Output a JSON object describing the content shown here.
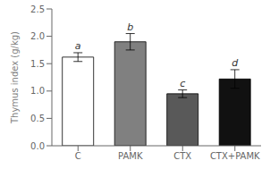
{
  "chart_data": {
    "type": "bar",
    "ylabel": "Thymus index (g/kg)",
    "categories": [
      "C",
      "PAMK",
      "CTX",
      "CTX+PAMK"
    ],
    "values": [
      1.62,
      1.9,
      0.95,
      1.22
    ],
    "errors": [
      0.08,
      0.15,
      0.07,
      0.17
    ],
    "annotations": [
      "a",
      "b",
      "c",
      "d"
    ],
    "colors": [
      "white",
      "#808080",
      "#595959",
      "#111111"
    ],
    "ylim": [
      0,
      2.5
    ],
    "yticks": [
      {
        "value": 0.0,
        "label": "0.0"
      },
      0.5,
      {
        "value": 1.0,
        "label": "1.0"
      },
      1.5,
      {
        "value": 2.0,
        "label": "2.0"
      },
      2.5
    ],
    "grid": false
  }
}
